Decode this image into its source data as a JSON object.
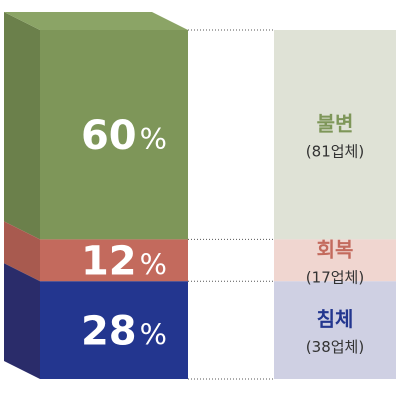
{
  "chart_data": {
    "type": "bar",
    "layout": "stacked-3d-column",
    "segments": [
      {
        "name": "불변",
        "note": "(81업체)",
        "percent": 60,
        "value_label": "60%",
        "colors": {
          "front": "#7e9659",
          "side": "#6b804b",
          "top": "#8ba466",
          "panel": "#dfe2d6",
          "label": "#7e9659"
        }
      },
      {
        "name": "회복",
        "note": "(17업체)",
        "percent": 12,
        "value_label": "12%",
        "colors": {
          "front": "#c36a5d",
          "side": "#a85a4f",
          "top": "#c97468",
          "panel": "#f0d6d0",
          "label": "#c36a5d"
        }
      },
      {
        "name": "침체",
        "note": "(38업체)",
        "percent": 28,
        "value_label": "28%",
        "colors": {
          "front": "#23368f",
          "side": "#2a2c6a",
          "top": "#2d3f96",
          "panel": "#cfd0e3",
          "label": "#23368f"
        }
      }
    ]
  }
}
